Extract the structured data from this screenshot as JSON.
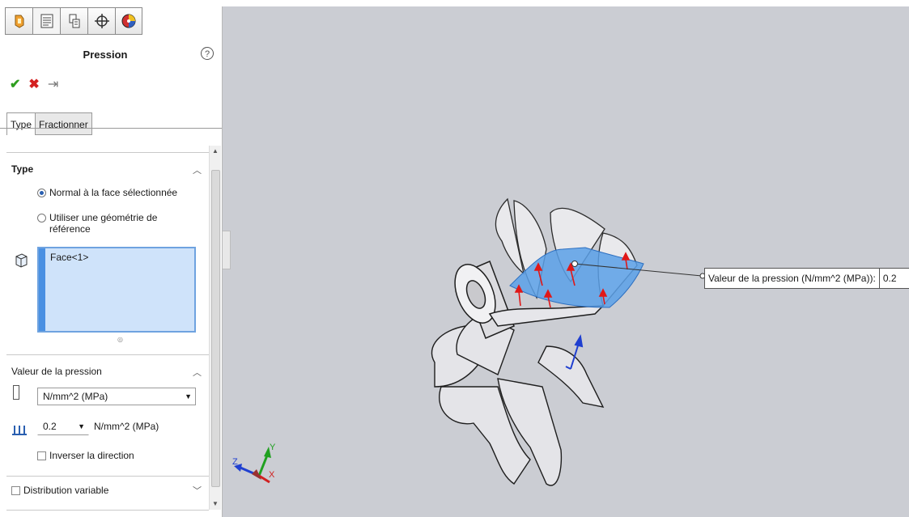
{
  "panel": {
    "title": "Pression",
    "help_glyph": "?",
    "actions": {
      "ok_glyph": "✔",
      "cancel_glyph": "✖",
      "pin_glyph": "⇥"
    },
    "tabs": [
      {
        "label": "Type"
      },
      {
        "label": "Fractionner"
      }
    ],
    "type_group": {
      "title": "Type",
      "options": [
        {
          "label": "Normal à la face sélectionnée",
          "selected": true
        },
        {
          "label_line1": "Utiliser une géométrie de",
          "label_line2": "référence",
          "selected": false
        }
      ],
      "selection": {
        "item": "Face<1>"
      }
    },
    "pressure_group": {
      "title": "Valeur de la pression",
      "unit_select": "N/mm^2 (MPa)",
      "value": "0.2",
      "value_unit": "N/mm^2 (MPa)",
      "reverse_label": "Inverser la direction",
      "reverse_checked": false
    },
    "distribution": {
      "label": "Distribution variable",
      "checked": false
    }
  },
  "viewport": {
    "callout_label": "Valeur de la pression (N/mm^2 (MPa)):",
    "callout_value": "0.2",
    "triad": {
      "x": "X",
      "y": "Y",
      "z": "Z"
    }
  },
  "colors": {
    "accent": "#4a90e2",
    "selection_bg": "#cfe3fa",
    "viewport_bg": "#cbcdd3",
    "pressure_arrow": "#e01818"
  },
  "icons": [
    "features-icon",
    "property-manager-icon",
    "configuration-icon",
    "dim-xpert-icon",
    "appearance-icon",
    "help-icon",
    "ok-icon",
    "cancel-icon",
    "pin-icon",
    "face-icon",
    "ruler-icon",
    "pressure-icon",
    "triad-icon"
  ]
}
